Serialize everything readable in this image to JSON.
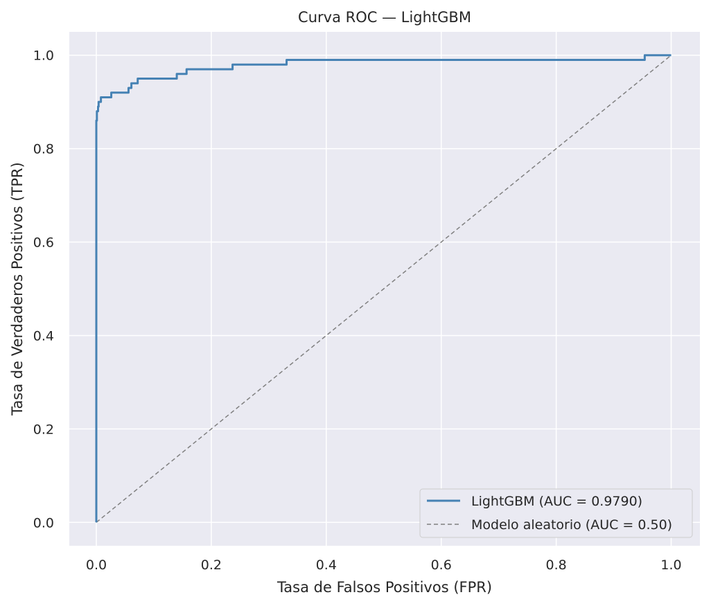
{
  "chart_data": {
    "type": "line",
    "title": "Curva ROC — LightGBM",
    "xlabel": "Tasa de Falsos Positivos (FPR)",
    "ylabel": "Tasa de Verdaderos Positivos (TPR)",
    "xlim": [
      -0.047,
      1.05
    ],
    "ylim": [
      -0.05,
      1.05
    ],
    "xticks": [
      0.0,
      0.2,
      0.4,
      0.6,
      0.8,
      1.0
    ],
    "xtick_labels": [
      "0.0",
      "0.2",
      "0.4",
      "0.6",
      "0.8",
      "1.0"
    ],
    "yticks": [
      0.0,
      0.2,
      0.4,
      0.6,
      0.8,
      1.0
    ],
    "ytick_labels": [
      "0.0",
      "0.2",
      "0.4",
      "0.6",
      "0.8",
      "1.0"
    ],
    "grid": true,
    "legend_position": "lower-right",
    "background": "#eaeaf2",
    "series": [
      {
        "name": "LightGBM (AUC = 0.9790)",
        "color": "#4682b4",
        "style": "solid",
        "x": [
          0.0,
          0.0,
          0.0,
          0.001,
          0.001,
          0.003,
          0.003,
          0.004,
          0.004,
          0.006,
          0.006,
          0.008,
          0.008,
          0.026,
          0.026,
          0.056,
          0.056,
          0.061,
          0.061,
          0.072,
          0.072,
          0.14,
          0.14,
          0.157,
          0.157,
          0.237,
          0.237,
          0.331,
          0.331,
          0.954,
          0.954,
          1.0
        ],
        "y": [
          0.0,
          0.83,
          0.86,
          0.86,
          0.88,
          0.88,
          0.89,
          0.89,
          0.9,
          0.9,
          0.9,
          0.9,
          0.91,
          0.91,
          0.92,
          0.92,
          0.93,
          0.93,
          0.94,
          0.94,
          0.95,
          0.95,
          0.96,
          0.96,
          0.97,
          0.97,
          0.98,
          0.98,
          0.99,
          0.99,
          1.0,
          1.0
        ]
      },
      {
        "name": "Modelo aleatorio (AUC = 0.50)",
        "color": "#808080",
        "style": "dashed",
        "x": [
          0.0,
          1.0
        ],
        "y": [
          0.0,
          1.0
        ]
      }
    ]
  }
}
